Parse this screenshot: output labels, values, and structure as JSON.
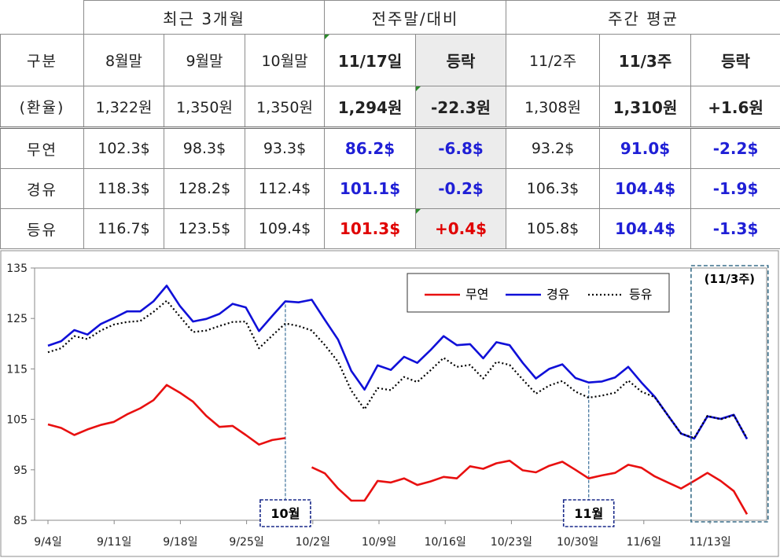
{
  "table": {
    "groups": {
      "recent": "최근 3개월",
      "prevweek": "전주말/대비",
      "weekavg": "주간 평균"
    },
    "row_label_header": "구분",
    "columns": [
      "8월말",
      "9월말",
      "10월말",
      "11/17일",
      "등락",
      "11/2주",
      "11/3주",
      "등락"
    ],
    "rows": [
      {
        "label": "(환율)",
        "values": [
          "1,322원",
          "1,350원",
          "1,350원",
          "1,294원",
          "-22.3원",
          "1,308원",
          "1,310원",
          "+1.6원"
        ]
      },
      {
        "label": "무연",
        "values": [
          "102.3$",
          "98.3$",
          "93.3$",
          "86.2$",
          "-6.8$",
          "93.2$",
          "91.0$",
          "-2.2$"
        ]
      },
      {
        "label": "경유",
        "values": [
          "118.3$",
          "128.2$",
          "112.4$",
          "101.1$",
          "-0.2$",
          "106.3$",
          "104.4$",
          "-1.9$"
        ]
      },
      {
        "label": "등유",
        "values": [
          "116.7$",
          "123.5$",
          "109.4$",
          "101.3$",
          "+0.4$",
          "105.8$",
          "104.4$",
          "-1.3$"
        ]
      }
    ]
  },
  "colors": {
    "gasoline": "#e81010",
    "diesel": "#1010d8",
    "kerosene": "#000000",
    "accent_blue": "#1f1fd6",
    "accent_red": "#e00000",
    "guide": "#3a6f9a"
  },
  "chart_data": {
    "type": "line",
    "x_tick_labels": [
      "9/4일",
      "9/11일",
      "9/18일",
      "9/25일",
      "10/2일",
      "10/9일",
      "10/16일",
      "10/23일",
      "10/30일",
      "11/6일",
      "11/13일"
    ],
    "x": [
      "9/4",
      "9/5",
      "9/6",
      "9/7",
      "9/8",
      "9/11",
      "9/12",
      "9/13",
      "9/14",
      "9/15",
      "9/18",
      "9/19",
      "9/20",
      "9/21",
      "9/22",
      "9/25",
      "9/26",
      "9/27",
      "9/28",
      "9/29",
      "10/2",
      "10/3",
      "10/4",
      "10/5",
      "10/6",
      "10/9",
      "10/10",
      "10/11",
      "10/12",
      "10/13",
      "10/16",
      "10/17",
      "10/18",
      "10/19",
      "10/20",
      "10/23",
      "10/24",
      "10/25",
      "10/26",
      "10/27",
      "10/30",
      "10/31",
      "11/1",
      "11/2",
      "11/3",
      "11/6",
      "11/7",
      "11/8",
      "11/9",
      "11/10",
      "11/13",
      "11/14",
      "11/15",
      "11/16",
      "11/17"
    ],
    "ylim": [
      85,
      135
    ],
    "yticks": [
      85,
      95,
      105,
      115,
      125,
      135
    ],
    "series": [
      {
        "name": "무연",
        "style": "solid",
        "values": [
          104.0,
          103.3,
          101.9,
          103.0,
          103.9,
          104.5,
          106.0,
          107.2,
          108.8,
          111.8,
          110.3,
          108.5,
          105.7,
          103.5,
          103.7,
          101.9,
          100.0,
          100.9,
          101.3,
          null,
          95.5,
          94.3,
          91.3,
          88.9,
          88.9,
          92.8,
          92.5,
          93.3,
          92.0,
          92.7,
          93.6,
          93.3,
          95.7,
          95.2,
          96.3,
          96.8,
          94.9,
          94.5,
          95.8,
          96.6,
          95.0,
          93.3,
          93.9,
          94.4,
          96.0,
          95.4,
          93.7,
          92.5,
          91.3,
          92.8,
          94.4,
          92.8,
          90.8,
          86.2,
          null
        ]
      },
      {
        "name": "경유",
        "style": "solid",
        "values": [
          119.6,
          120.5,
          122.7,
          121.8,
          123.9,
          125.1,
          126.4,
          126.4,
          128.4,
          131.5,
          127.5,
          124.4,
          124.9,
          125.9,
          127.9,
          127.2,
          122.5,
          125.5,
          128.4,
          128.2,
          128.7,
          124.7,
          120.8,
          114.6,
          110.9,
          115.7,
          114.8,
          117.4,
          116.2,
          118.7,
          121.5,
          119.7,
          119.9,
          117.1,
          120.3,
          119.7,
          116.2,
          113.1,
          115.0,
          115.9,
          113.2,
          112.3,
          112.5,
          113.3,
          115.4,
          112.3,
          109.5,
          105.8,
          102.2,
          101.2,
          105.6,
          105.1,
          105.9,
          101.1,
          null
        ]
      },
      {
        "name": "등유",
        "style": "dotted",
        "values": [
          118.3,
          119.1,
          121.5,
          120.9,
          122.6,
          123.8,
          124.3,
          124.5,
          126.3,
          128.5,
          125.4,
          122.3,
          122.6,
          123.5,
          124.3,
          124.4,
          119.1,
          121.6,
          124.0,
          123.5,
          122.6,
          119.7,
          116.4,
          110.7,
          107.0,
          111.2,
          110.8,
          113.4,
          112.4,
          114.7,
          117.2,
          115.4,
          115.8,
          113.1,
          116.4,
          115.8,
          112.9,
          110.1,
          111.7,
          112.6,
          110.5,
          109.3,
          109.7,
          110.3,
          112.7,
          110.5,
          109.4,
          105.8,
          102.2,
          101.3,
          105.7,
          105.0,
          105.8,
          101.3,
          null
        ]
      }
    ],
    "annotations": [
      {
        "text": "10월",
        "at": "9/28"
      },
      {
        "text": "11월",
        "at": "10/31"
      },
      {
        "text": "(11/3주)",
        "range": [
          "11/10",
          "11/17"
        ]
      }
    ],
    "legend_position": "top-right",
    "grid": false
  }
}
